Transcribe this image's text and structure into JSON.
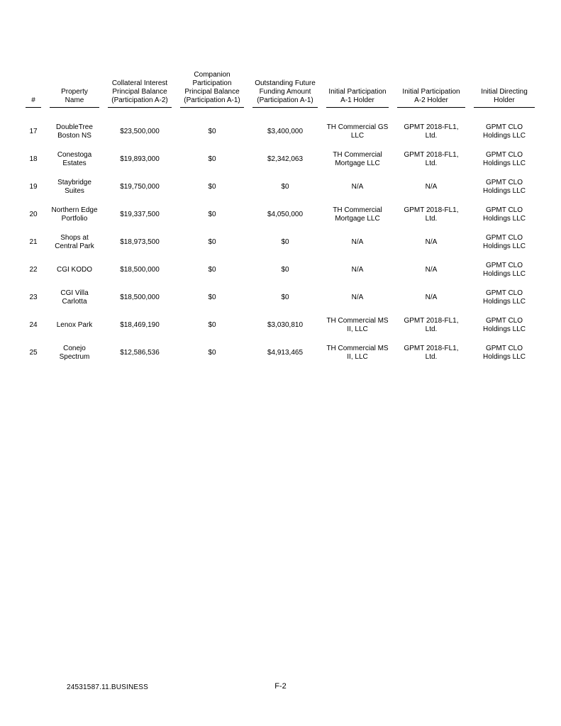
{
  "document": {
    "footer": {
      "doc_id": "24531587.11.BUSINESS",
      "page_number": "F-2"
    }
  },
  "table": {
    "columns": [
      {
        "id": "num",
        "label": "#"
      },
      {
        "id": "property-name",
        "label": "Property\nName"
      },
      {
        "id": "collateral-interest-principal-balance",
        "label": "Collateral Interest\nPrincipal Balance\n(Participation A-2)"
      },
      {
        "id": "companion-participation-principal-balance",
        "label": "Companion\nParticipation\nPrincipal Balance\n(Participation A-1)"
      },
      {
        "id": "outstanding-future-funding-amount",
        "label": "Outstanding Future\nFunding Amount\n(Participation A-1)"
      },
      {
        "id": "initial-participation-a1-holder",
        "label": "Initial Participation\nA-1 Holder"
      },
      {
        "id": "initial-participation-a2-holder",
        "label": "Initial Participation\nA-2 Holder"
      },
      {
        "id": "initial-directing-holder",
        "label": "Initial Directing\nHolder"
      }
    ],
    "rows": [
      [
        "17",
        "DoubleTree\nBoston NS",
        "$23,500,000",
        "$0",
        "$3,400,000",
        "TH Commercial GS\nLLC",
        "GPMT 2018-FL1, Ltd.",
        "GPMT CLO\nHoldings LLC"
      ],
      [
        "18",
        "Conestoga\nEstates",
        "$19,893,000",
        "$0",
        "$2,342,063",
        "TH Commercial\nMortgage LLC",
        "GPMT 2018-FL1, Ltd.",
        "GPMT CLO\nHoldings LLC"
      ],
      [
        "19",
        "Staybridge\nSuites",
        "$19,750,000",
        "$0",
        "$0",
        "N/A",
        "N/A",
        "GPMT CLO\nHoldings LLC"
      ],
      [
        "20",
        "Northern Edge\nPortfolio",
        "$19,337,500",
        "$0",
        "$4,050,000",
        "TH Commercial\nMortgage LLC",
        "GPMT 2018-FL1, Ltd.",
        "GPMT CLO\nHoldings LLC"
      ],
      [
        "21",
        "Shops at\nCentral Park",
        "$18,973,500",
        "$0",
        "$0",
        "N/A",
        "N/A",
        "GPMT CLO\nHoldings LLC"
      ],
      [
        "22",
        "CGI KODO",
        "$18,500,000",
        "$0",
        "$0",
        "N/A",
        "N/A",
        "GPMT CLO\nHoldings LLC"
      ],
      [
        "23",
        "CGI Villa\nCarlotta",
        "$18,500,000",
        "$0",
        "$0",
        "N/A",
        "N/A",
        "GPMT CLO\nHoldings LLC"
      ],
      [
        "24",
        "Lenox Park",
        "$18,469,190",
        "$0",
        "$3,030,810",
        "TH Commercial MS\nII, LLC",
        "GPMT 2018-FL1, Ltd.",
        "GPMT CLO\nHoldings LLC"
      ],
      [
        "25",
        "Conejo\nSpectrum",
        "$12,586,536",
        "$0",
        "$4,913,465",
        "TH Commercial MS\nII, LLC",
        "GPMT 2018-FL1, Ltd.",
        "GPMT CLO\nHoldings LLC"
      ]
    ]
  },
  "colors": {
    "text": "#000000",
    "background": "#ffffff",
    "rule": "#000000"
  }
}
